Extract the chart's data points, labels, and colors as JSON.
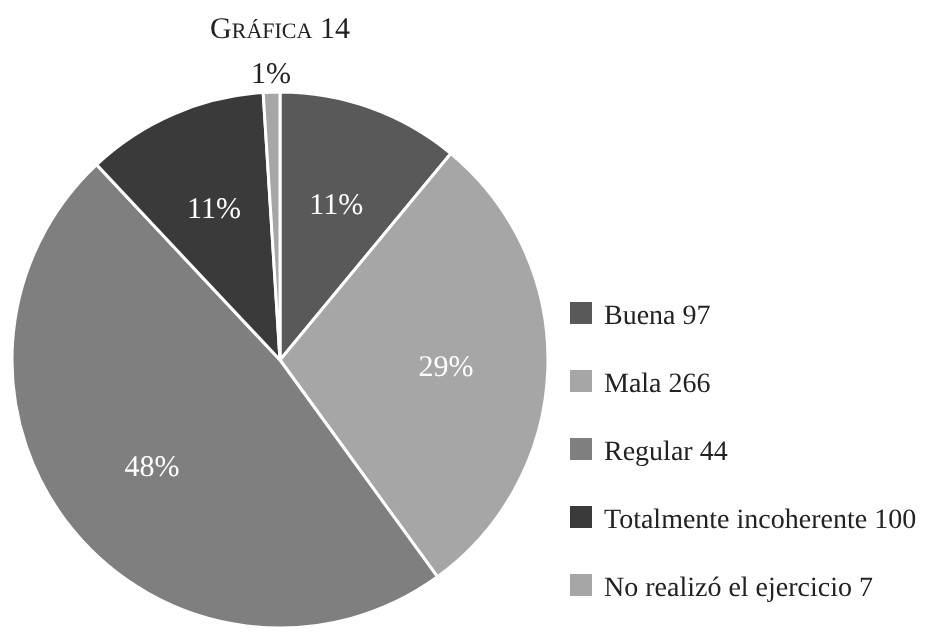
{
  "chart_data": {
    "type": "pie",
    "title": "Gráfica 14",
    "categories": [
      "Buena 97",
      "Mala 266",
      "Regular 44",
      "Totalmente incoherente 100",
      "No realizó el ejercicio 7"
    ],
    "values": [
      11,
      29,
      48,
      11,
      1
    ],
    "colors": [
      "#595959",
      "#a6a6a6",
      "#7f7f7f",
      "#3a3a3a",
      "#a6a6a6"
    ],
    "value_labels": [
      "11%",
      "29%",
      "48%",
      "11%",
      "1%"
    ],
    "legend": "right"
  }
}
